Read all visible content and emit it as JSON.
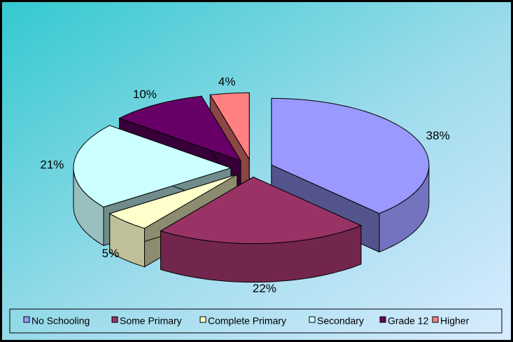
{
  "chart_data": {
    "type": "pie",
    "categories": [
      "No Schooling",
      "Some Primary",
      "Complete Primary",
      "Secondary",
      "Grade 12",
      "Higher"
    ],
    "values": [
      38,
      22,
      5,
      21,
      10,
      4
    ],
    "value_labels": [
      "38%",
      "22%",
      "5%",
      "21%",
      "10%",
      "4%"
    ],
    "colors": [
      "#9999ff",
      "#993366",
      "#ffffcc",
      "#ccffff",
      "#660066",
      "#ff8080"
    ],
    "legend": "bottom"
  }
}
